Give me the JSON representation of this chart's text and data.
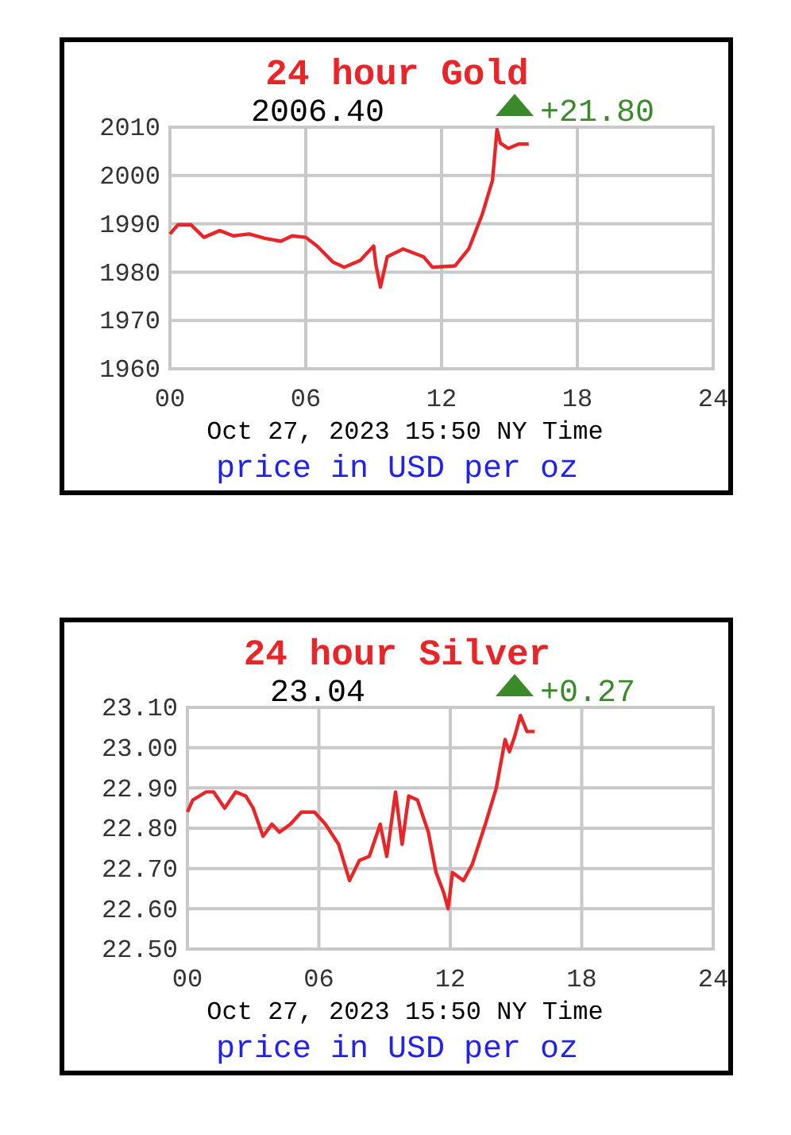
{
  "chart_data": [
    {
      "type": "line",
      "title": "24 hour Gold",
      "subtitle": "2006.40",
      "annotations": [
        "+21.80",
        "Oct 27, 2023 15:50 NY Time",
        "price in USD per oz"
      ],
      "xlim": [
        0,
        24
      ],
      "xticks": [
        {
          "value": 0,
          "label": "00"
        },
        {
          "value": 6,
          "label": "06"
        },
        {
          "value": 12,
          "label": "12"
        },
        {
          "value": 18,
          "label": "18"
        },
        {
          "value": 24,
          "label": "24"
        }
      ],
      "ylim": [
        1960,
        2010
      ],
      "yticks": [
        1960,
        1970,
        1980,
        1990,
        2000,
        2010
      ],
      "grid": true,
      "series": [
        {
          "color": "#e8262a",
          "x": [
            0,
            0.35,
            0.93,
            1.5,
            2.2,
            2.8,
            3.5,
            4.2,
            4.9,
            5.4,
            6.0,
            6.5,
            7.2,
            7.7,
            8.4,
            9.0,
            9.1,
            9.3,
            9.6,
            10.3,
            11.2,
            11.6,
            12.6,
            13.2,
            13.8,
            14.25,
            14.45,
            14.6,
            14.95,
            15.4,
            15.85
          ],
          "values": [
            1987.9,
            1989.8,
            1989.8,
            1987.2,
            1988.6,
            1987.5,
            1987.9,
            1987,
            1986.4,
            1987.5,
            1987.2,
            1985.4,
            1982.1,
            1981,
            1982.4,
            1985.4,
            1981.5,
            1976.9,
            1983.2,
            1984.8,
            1983.2,
            1981,
            1981.3,
            1984.8,
            1992,
            1999,
            2009.5,
            2006.7,
            2005.6,
            2006.5,
            2006.5
          ]
        }
      ]
    },
    {
      "type": "line",
      "title": "24 hour Silver",
      "subtitle": "23.04",
      "annotations": [
        "+0.27",
        "Oct 27, 2023 15:50 NY Time",
        "price in USD per oz"
      ],
      "xlim": [
        0,
        24
      ],
      "xticks": [
        {
          "value": 0,
          "label": "00"
        },
        {
          "value": 6,
          "label": "06"
        },
        {
          "value": 12,
          "label": "12"
        },
        {
          "value": 18,
          "label": "18"
        },
        {
          "value": 24,
          "label": "24"
        }
      ],
      "ylim": [
        22.5,
        23.1
      ],
      "yticks": [
        {
          "value": 22.5,
          "label": "22.50"
        },
        {
          "value": 22.6,
          "label": "22.60"
        },
        {
          "value": 22.7,
          "label": "22.70"
        },
        {
          "value": 22.8,
          "label": "22.80"
        },
        {
          "value": 22.9,
          "label": "22.90"
        },
        {
          "value": 23.0,
          "label": "23.00"
        },
        {
          "value": 23.1,
          "label": "23.10"
        }
      ],
      "grid": true,
      "series": [
        {
          "color": "#e8262a",
          "x": [
            0,
            0.24,
            0.85,
            1.2,
            1.7,
            2.2,
            2.66,
            3.0,
            3.45,
            3.86,
            4.2,
            4.7,
            5.2,
            5.8,
            6.3,
            6.9,
            7.4,
            7.85,
            8.3,
            8.8,
            9.1,
            9.5,
            9.8,
            10.1,
            10.5,
            11.0,
            11.35,
            11.7,
            11.9,
            12.1,
            12.6,
            13.0,
            13.6,
            14.1,
            14.5,
            14.7,
            14.95,
            15.2,
            15.5,
            15.85
          ],
          "values": [
            22.84,
            22.87,
            22.89,
            22.89,
            22.85,
            22.89,
            22.88,
            22.85,
            22.78,
            22.81,
            22.79,
            22.81,
            22.84,
            22.84,
            22.81,
            22.76,
            22.67,
            22.72,
            22.73,
            22.81,
            22.73,
            22.89,
            22.76,
            22.88,
            22.87,
            22.79,
            22.69,
            22.64,
            22.6,
            22.69,
            22.67,
            22.71,
            22.81,
            22.9,
            23.02,
            22.99,
            23.03,
            23.08,
            23.04,
            23.04
          ]
        }
      ]
    }
  ]
}
